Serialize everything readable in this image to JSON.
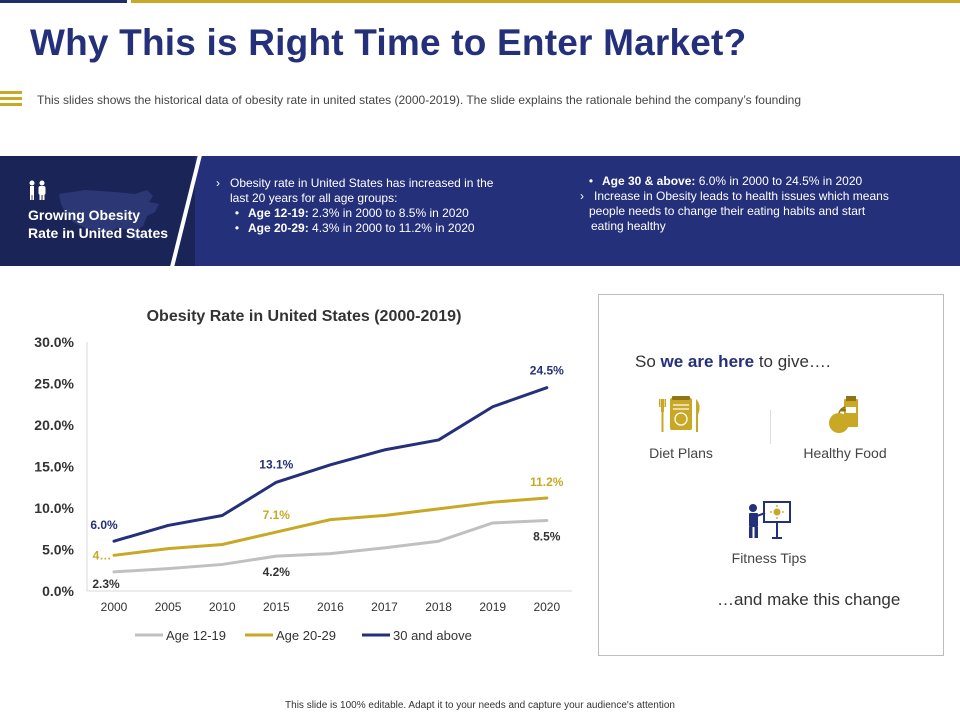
{
  "header": {
    "title": "Why This is Right Time to Enter Market?",
    "subtitle": "This slides shows the historical data of obesity rate in united states (2000-2019).  The  slide explains the rationale  behind the company’s founding"
  },
  "banner": {
    "label_line1": "Growing Obesity",
    "label_line2": "Rate in United States",
    "col1_line1": "Obesity rate in United States has increased in the",
    "col1_line2": "last 20 years for all age groups:",
    "col1_b1_label": "Age 12-19:",
    "col1_b1_text": " 2.3% in 2000 to 8.5% in 2020",
    "col1_b2_label": "Age 20-29:",
    "col1_b2_text": " 4.3% in 2000 to 11.2% in 2020",
    "col2_b1_label": "Age 30 & above:",
    "col2_b1_text": " 6.0% in 2000 to 24.5% in 2020",
    "col2_line1": "Increase in Obesity leads to health issues which means",
    "col2_line2": "people needs to change their eating habits and start",
    "col2_line3": "eating healthy"
  },
  "chart_data": {
    "type": "line",
    "title": "Obesity Rate in United States (2000-2019)",
    "categories": [
      "2000",
      "2005",
      "2010",
      "2015",
      "2016",
      "2017",
      "2018",
      "2019",
      "2020"
    ],
    "ylim": [
      0,
      30
    ],
    "yticks": [
      "0.0%",
      "5.0%",
      "10.0%",
      "15.0%",
      "20.0%",
      "25.0%",
      "30.0%"
    ],
    "series": [
      {
        "name": "Age 12-19",
        "color": "#c0c0c0",
        "values": [
          2.3,
          2.7,
          3.2,
          4.2,
          4.5,
          5.2,
          6.0,
          8.2,
          8.5
        ],
        "labels": [
          {
            "index": 0,
            "text": "2.3%"
          },
          {
            "index": 3,
            "text": "4.2%"
          },
          {
            "index": 8,
            "text": "8.5%"
          }
        ]
      },
      {
        "name": "Age 20-29",
        "color": "#c9a826",
        "values": [
          4.3,
          5.1,
          5.6,
          7.1,
          8.6,
          9.1,
          9.9,
          10.7,
          11.2
        ],
        "labels": [
          {
            "index": 0,
            "text": "4…"
          },
          {
            "index": 3,
            "text": "7.1%"
          },
          {
            "index": 8,
            "text": "11.2%"
          }
        ]
      },
      {
        "name": "30 and above",
        "color": "#25307a",
        "values": [
          6.0,
          7.9,
          9.1,
          13.1,
          15.2,
          17.0,
          18.2,
          22.2,
          24.5
        ],
        "labels": [
          {
            "index": 0,
            "text": "6.0%"
          },
          {
            "index": 3,
            "text": "13.1%"
          },
          {
            "index": 8,
            "text": "24.5%"
          }
        ]
      }
    ]
  },
  "panel": {
    "intro_pre": "So ",
    "intro_bold": "we are here",
    "intro_post": " to give….",
    "diet": "Diet Plans",
    "food": "Healthy Food",
    "fitness": "Fitness Tips",
    "outro": "…and make this change",
    "colors": {
      "gold": "#c9a826",
      "navy": "#25307a"
    }
  },
  "footer": {
    "text": "This slide is 100% editable. Adapt it to your needs and capture your audience's attention"
  }
}
